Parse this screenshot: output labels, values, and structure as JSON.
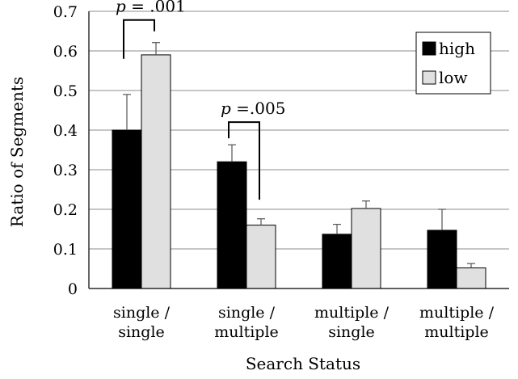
{
  "chart_data": {
    "type": "bar",
    "title": "",
    "xlabel": "Search Status",
    "ylabel": "Ratio of Segments",
    "ylim": [
      0,
      0.7
    ],
    "yticks": [
      "0",
      "0.1",
      "0.2",
      "0.3",
      "0.4",
      "0.5",
      "0.6",
      "0.7"
    ],
    "grid": "horizontal",
    "legend_position": "top-right",
    "categories": [
      [
        "single /",
        "single"
      ],
      [
        "single /",
        "multiple"
      ],
      [
        "multiple /",
        "single"
      ],
      [
        "multiple /",
        "multiple"
      ]
    ],
    "series": [
      {
        "name": "high",
        "color": "#000000",
        "values": [
          0.4,
          0.32,
          0.137,
          0.147
        ],
        "errors": [
          0.09,
          0.043,
          0.025,
          0.053
        ]
      },
      {
        "name": "low",
        "color": "#e0e0e0",
        "values": [
          0.59,
          0.16,
          0.202,
          0.052
        ],
        "errors": [
          0.031,
          0.016,
          0.019,
          0.011
        ]
      }
    ],
    "annotations": [
      {
        "category_index": 0,
        "label": "p = .001"
      },
      {
        "category_index": 1,
        "label": "p =.005"
      }
    ]
  }
}
